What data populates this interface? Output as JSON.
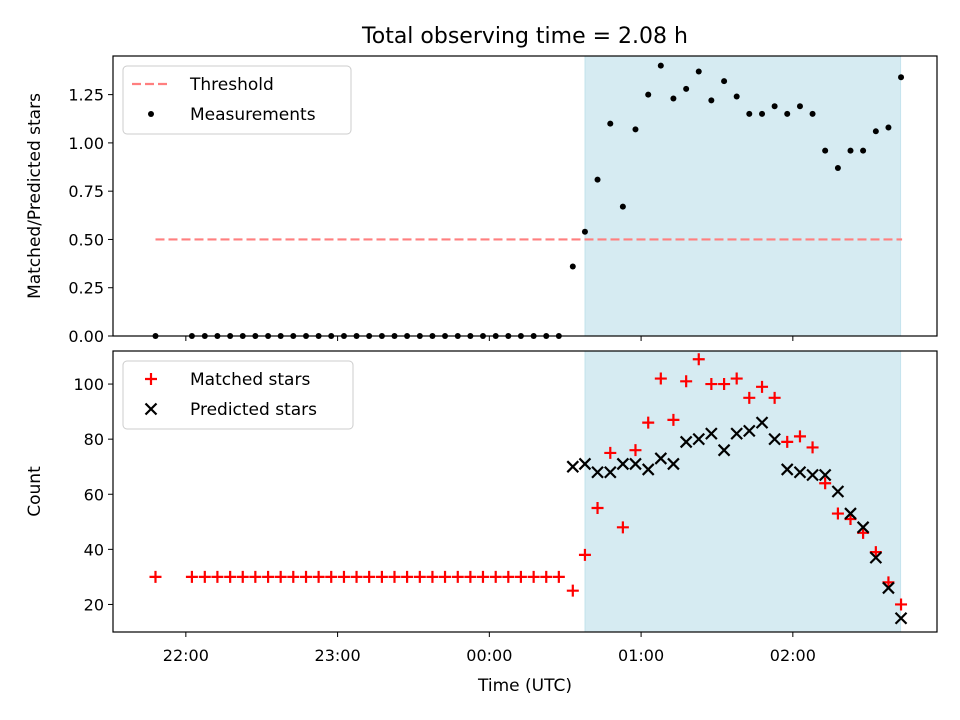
{
  "title": "Total observing time = 2.08 h",
  "xlabel": "Time (UTC)",
  "x_ticks": [
    "22:00",
    "23:00",
    "00:00",
    "01:00",
    "02:00"
  ],
  "x_tick_hours": [
    22,
    23,
    24,
    25,
    26
  ],
  "x_range_hours": [
    21.52,
    26.95
  ],
  "shaded_interval_hours": [
    24.63,
    26.71
  ],
  "colors": {
    "threshold": "#ff7f7f",
    "measurements": "#000000",
    "matched": "#ff0000",
    "predicted": "#000000",
    "shade": "#add8e6"
  },
  "chart_data": [
    {
      "type": "scatter",
      "ylabel": "Matched/Predicted stars",
      "ylim": [
        0,
        1.45
      ],
      "yticks": [
        0.0,
        0.25,
        0.5,
        0.75,
        1.0,
        1.25
      ],
      "ytick_labels": [
        "0.00",
        "0.25",
        "0.50",
        "0.75",
        "1.00",
        "1.25"
      ],
      "legend_position": "top-left",
      "legend": [
        {
          "label": "Threshold",
          "style": "dashed-line"
        },
        {
          "label": "Measurements",
          "style": "dot"
        }
      ],
      "threshold": {
        "y": 0.5,
        "x_from": 21.8,
        "x_to": 26.72
      },
      "measurements": {
        "x": [
          21.8,
          22.04,
          22.125,
          22.208,
          22.292,
          22.375,
          22.458,
          22.542,
          22.625,
          22.708,
          22.792,
          22.875,
          22.958,
          23.042,
          23.125,
          23.208,
          23.292,
          23.375,
          23.458,
          23.542,
          23.625,
          23.708,
          23.792,
          23.875,
          23.958,
          24.042,
          24.125,
          24.208,
          24.292,
          24.375,
          24.458,
          24.55,
          24.63,
          24.713,
          24.797,
          24.88,
          24.963,
          25.047,
          25.13,
          25.213,
          25.297,
          25.38,
          25.463,
          25.547,
          25.63,
          25.713,
          25.797,
          25.88,
          25.963,
          26.047,
          26.13,
          26.213,
          26.297,
          26.38,
          26.463,
          26.547,
          26.63,
          26.713
        ],
        "y": [
          0,
          0,
          0,
          0,
          0,
          0,
          0,
          0,
          0,
          0,
          0,
          0,
          0,
          0,
          0,
          0,
          0,
          0,
          0,
          0,
          0,
          0,
          0,
          0,
          0,
          0,
          0,
          0,
          0,
          0,
          0,
          0.36,
          0.54,
          0.81,
          1.1,
          0.67,
          1.07,
          1.25,
          1.4,
          1.23,
          1.28,
          1.37,
          1.22,
          1.32,
          1.24,
          1.15,
          1.15,
          1.19,
          1.15,
          1.19,
          1.15,
          0.96,
          0.87,
          0.96,
          0.96,
          1.06,
          1.08,
          1.34
        ]
      }
    },
    {
      "type": "scatter",
      "ylabel": "Count",
      "ylim": [
        10,
        112
      ],
      "yticks": [
        20,
        40,
        60,
        80,
        100
      ],
      "ytick_labels": [
        "20",
        "40",
        "60",
        "80",
        "100"
      ],
      "legend_position": "top-left",
      "series": [
        {
          "name": "Matched stars",
          "marker": "plus",
          "x": [
            21.8,
            22.04,
            22.125,
            22.208,
            22.292,
            22.375,
            22.458,
            22.542,
            22.625,
            22.708,
            22.792,
            22.875,
            22.958,
            23.042,
            23.125,
            23.208,
            23.292,
            23.375,
            23.458,
            23.542,
            23.625,
            23.708,
            23.792,
            23.875,
            23.958,
            24.042,
            24.125,
            24.208,
            24.292,
            24.375,
            24.458,
            24.55,
            24.63,
            24.713,
            24.797,
            24.88,
            24.963,
            25.047,
            25.13,
            25.213,
            25.297,
            25.38,
            25.463,
            25.547,
            25.63,
            25.713,
            25.797,
            25.88,
            25.963,
            26.047,
            26.13,
            26.213,
            26.297,
            26.38,
            26.463,
            26.547,
            26.63,
            26.713
          ],
          "y": [
            30,
            30,
            30,
            30,
            30,
            30,
            30,
            30,
            30,
            30,
            30,
            30,
            30,
            30,
            30,
            30,
            30,
            30,
            30,
            30,
            30,
            30,
            30,
            30,
            30,
            30,
            30,
            30,
            30,
            30,
            30,
            25,
            38,
            55,
            75,
            48,
            76,
            86,
            102,
            87,
            101,
            109,
            100,
            100,
            102,
            95,
            99,
            95,
            79,
            81,
            77,
            64,
            53,
            51,
            46,
            39,
            28,
            20
          ]
        },
        {
          "name": "Predicted stars",
          "marker": "x",
          "x": [
            24.55,
            24.63,
            24.713,
            24.797,
            24.88,
            24.963,
            25.047,
            25.13,
            25.213,
            25.297,
            25.38,
            25.463,
            25.547,
            25.63,
            25.713,
            25.797,
            25.88,
            25.963,
            26.047,
            26.13,
            26.213,
            26.297,
            26.38,
            26.463,
            26.547,
            26.63,
            26.713
          ],
          "y": [
            70,
            71,
            68,
            68,
            71,
            71,
            69,
            73,
            71,
            79,
            80,
            82,
            76,
            82,
            83,
            86,
            80,
            69,
            68,
            67,
            67,
            61,
            53,
            48,
            37,
            26,
            15
          ]
        }
      ]
    }
  ]
}
